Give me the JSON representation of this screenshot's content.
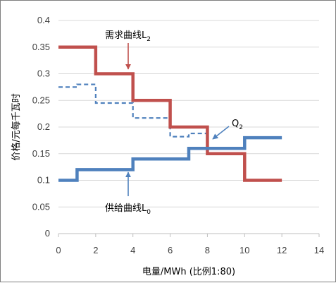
{
  "chart_data": {
    "type": "line",
    "title": "",
    "xlabel": "电量/MWh (比例1:80)",
    "ylabel": "价格/元每千瓦时",
    "xlim": [
      0,
      14
    ],
    "ylim": [
      0,
      0.4
    ],
    "x_ticks": [
      "0",
      "2",
      "4",
      "6",
      "8",
      "10",
      "12",
      "14"
    ],
    "y_ticks": [
      "0",
      "0.05",
      "0.1",
      "0.15",
      "0.2",
      "0.25",
      "0.3",
      "0.35",
      "0.4"
    ],
    "grid": "horizontal",
    "series": [
      {
        "name": "需求曲线L2",
        "style": "step-solid",
        "color": "#c0504d",
        "x": [
          0,
          2,
          2,
          4,
          4,
          6,
          6,
          8,
          8,
          10,
          10,
          12
        ],
        "y": [
          0.35,
          0.35,
          0.3,
          0.3,
          0.25,
          0.25,
          0.2,
          0.2,
          0.15,
          0.15,
          0.1,
          0.1
        ]
      },
      {
        "name": "供给曲线L0",
        "style": "step-solid",
        "color": "#4f81bd",
        "x": [
          0,
          1,
          1,
          4,
          4,
          7,
          7,
          10,
          10,
          12
        ],
        "y": [
          0.1,
          0.1,
          0.12,
          0.12,
          0.14,
          0.14,
          0.16,
          0.16,
          0.18,
          0.18
        ]
      },
      {
        "name": "Q2",
        "style": "step-dashed",
        "color": "#4f81bd",
        "x": [
          0,
          1,
          1,
          2,
          2,
          4,
          4,
          6,
          6,
          7,
          7,
          8
        ],
        "y": [
          0.275,
          0.275,
          0.28,
          0.28,
          0.245,
          0.245,
          0.217,
          0.217,
          0.182,
          0.182,
          0.188,
          0.188
        ]
      }
    ],
    "annotations": [
      {
        "id": "demand",
        "main": "需求曲线L",
        "sub": "2",
        "color": "#c0504d",
        "target": [
          4,
          0.3
        ]
      },
      {
        "id": "supply",
        "main": "供给曲线L",
        "sub": "0",
        "color": "#4f81bd",
        "target": [
          4,
          0.14
        ]
      },
      {
        "id": "q2",
        "main": "Q",
        "sub": "2",
        "color": "#4f81bd",
        "target": [
          8.2,
          0.18
        ]
      }
    ]
  }
}
